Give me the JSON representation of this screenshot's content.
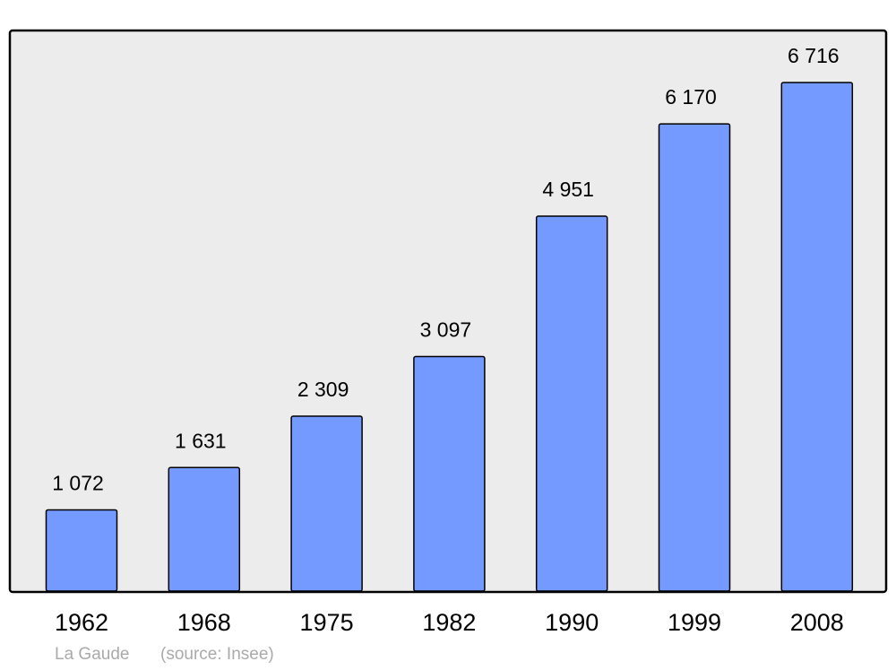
{
  "chart_data": {
    "type": "bar",
    "title": "La Gaude",
    "source": "(source: Insee)",
    "categories": [
      "1962",
      "1968",
      "1975",
      "1982",
      "1990",
      "1999",
      "2008"
    ],
    "values": [
      1072,
      1631,
      2309,
      3097,
      4951,
      6170,
      6716
    ],
    "value_labels": [
      "1 072",
      "1 631",
      "2 309",
      "3 097",
      "4 951",
      "6 170",
      "6 716"
    ],
    "color": "#7499ff"
  }
}
